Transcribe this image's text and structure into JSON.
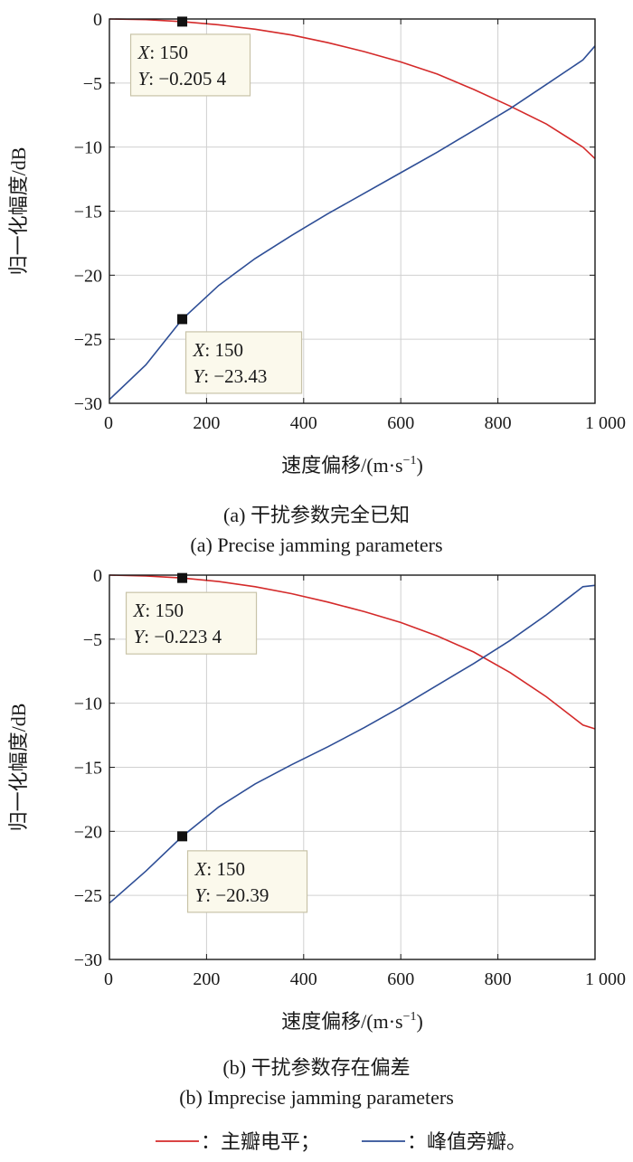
{
  "colors": {
    "main_lobe": "#d42a2a",
    "peak_sidelobe": "#2e4e96",
    "grid": "#d0d0d0",
    "datatip_bg": "#fbf9ec",
    "datatip_border": "#c8c3a8"
  },
  "chart_data": [
    {
      "type": "line",
      "caption_cn": "(a) 干扰参数完全已知",
      "caption_en": "(a) Precise jamming parameters",
      "xlabel": "速度偏移/(m·s",
      "xlabel_sup": "−1",
      "xlabel_close": ")",
      "ylabel": "归一化幅度/dB",
      "xlim": [
        0,
        1000
      ],
      "ylim": [
        -30,
        0
      ],
      "xticks": [
        0,
        200,
        400,
        600,
        800,
        1000
      ],
      "xtick_labels": [
        "0",
        "200",
        "400",
        "600",
        "800",
        "1 000"
      ],
      "yticks": [
        0,
        -5,
        -10,
        -15,
        -20,
        -25,
        -30
      ],
      "ytick_labels": [
        "0",
        "−5",
        "−10",
        "−15",
        "−20",
        "−25",
        "−30"
      ],
      "grid": true,
      "series": [
        {
          "name": "主瓣电平",
          "x": [
            0,
            75,
            150,
            225,
            300,
            375,
            450,
            525,
            600,
            675,
            750,
            825,
            900,
            975,
            1000
          ],
          "y": [
            0,
            -0.05,
            -0.2054,
            -0.45,
            -0.8,
            -1.25,
            -1.85,
            -2.55,
            -3.35,
            -4.3,
            -5.5,
            -6.8,
            -8.2,
            -10.0,
            -10.9
          ]
        },
        {
          "name": "峰值旁瓣",
          "x": [
            0,
            75,
            150,
            225,
            300,
            375,
            450,
            525,
            600,
            675,
            750,
            825,
            900,
            975,
            1000
          ],
          "y": [
            -29.7,
            -27.0,
            -23.43,
            -20.8,
            -18.7,
            -16.9,
            -15.2,
            -13.6,
            -12.0,
            -10.4,
            -8.7,
            -7.0,
            -5.1,
            -3.2,
            -2.1
          ]
        }
      ],
      "datatips": [
        {
          "series": "主瓣电平",
          "x_label": "X",
          "x_value": "150",
          "y_label": "Y",
          "y_value": "−0.205 4",
          "x": 150,
          "y": -0.2054
        },
        {
          "series": "峰值旁瓣",
          "x_label": "X",
          "x_value": "150",
          "y_label": "Y",
          "y_value": "−23.43",
          "x": 150,
          "y": -23.43
        }
      ]
    },
    {
      "type": "line",
      "caption_cn": "(b) 干扰参数存在偏差",
      "caption_en": "(b) Imprecise jamming parameters",
      "xlabel": "速度偏移/(m·s",
      "xlabel_sup": "−1",
      "xlabel_close": ")",
      "ylabel": "归一化幅度/dB",
      "xlim": [
        0,
        1000
      ],
      "ylim": [
        -30,
        0
      ],
      "xticks": [
        0,
        200,
        400,
        600,
        800,
        1000
      ],
      "xtick_labels": [
        "0",
        "200",
        "400",
        "600",
        "800",
        "1 000"
      ],
      "yticks": [
        0,
        -5,
        -10,
        -15,
        -20,
        -25,
        -30
      ],
      "ytick_labels": [
        "0",
        "−5",
        "−10",
        "−15",
        "−20",
        "−25",
        "−30"
      ],
      "grid": true,
      "series": [
        {
          "name": "主瓣电平",
          "x": [
            0,
            75,
            150,
            225,
            300,
            375,
            450,
            525,
            600,
            675,
            750,
            825,
            900,
            975,
            1000
          ],
          "y": [
            0,
            -0.06,
            -0.2234,
            -0.5,
            -0.9,
            -1.45,
            -2.1,
            -2.85,
            -3.7,
            -4.75,
            -6.0,
            -7.6,
            -9.5,
            -11.7,
            -12.0
          ]
        },
        {
          "name": "峰值旁瓣",
          "x": [
            0,
            75,
            150,
            225,
            300,
            375,
            450,
            525,
            600,
            675,
            750,
            825,
            900,
            975,
            1000
          ],
          "y": [
            -25.6,
            -23.1,
            -20.39,
            -18.1,
            -16.3,
            -14.8,
            -13.4,
            -11.9,
            -10.3,
            -8.6,
            -6.9,
            -5.1,
            -3.1,
            -0.9,
            -0.8
          ]
        }
      ],
      "datatips": [
        {
          "series": "主瓣电平",
          "x_label": "X",
          "x_value": "150",
          "y_label": "Y",
          "y_value": "−0.223 4",
          "x": 150,
          "y": -0.2234
        },
        {
          "series": "峰值旁瓣",
          "x_label": "X",
          "x_value": "150",
          "y_label": "Y",
          "y_value": "−20.39",
          "x": 150,
          "y": -20.39
        }
      ]
    }
  ],
  "legend": {
    "items": [
      {
        "label": "：主瓣电平；",
        "color": "#d42a2a"
      },
      {
        "label": "：峰值旁瓣。",
        "color": "#2e4e96"
      }
    ]
  }
}
